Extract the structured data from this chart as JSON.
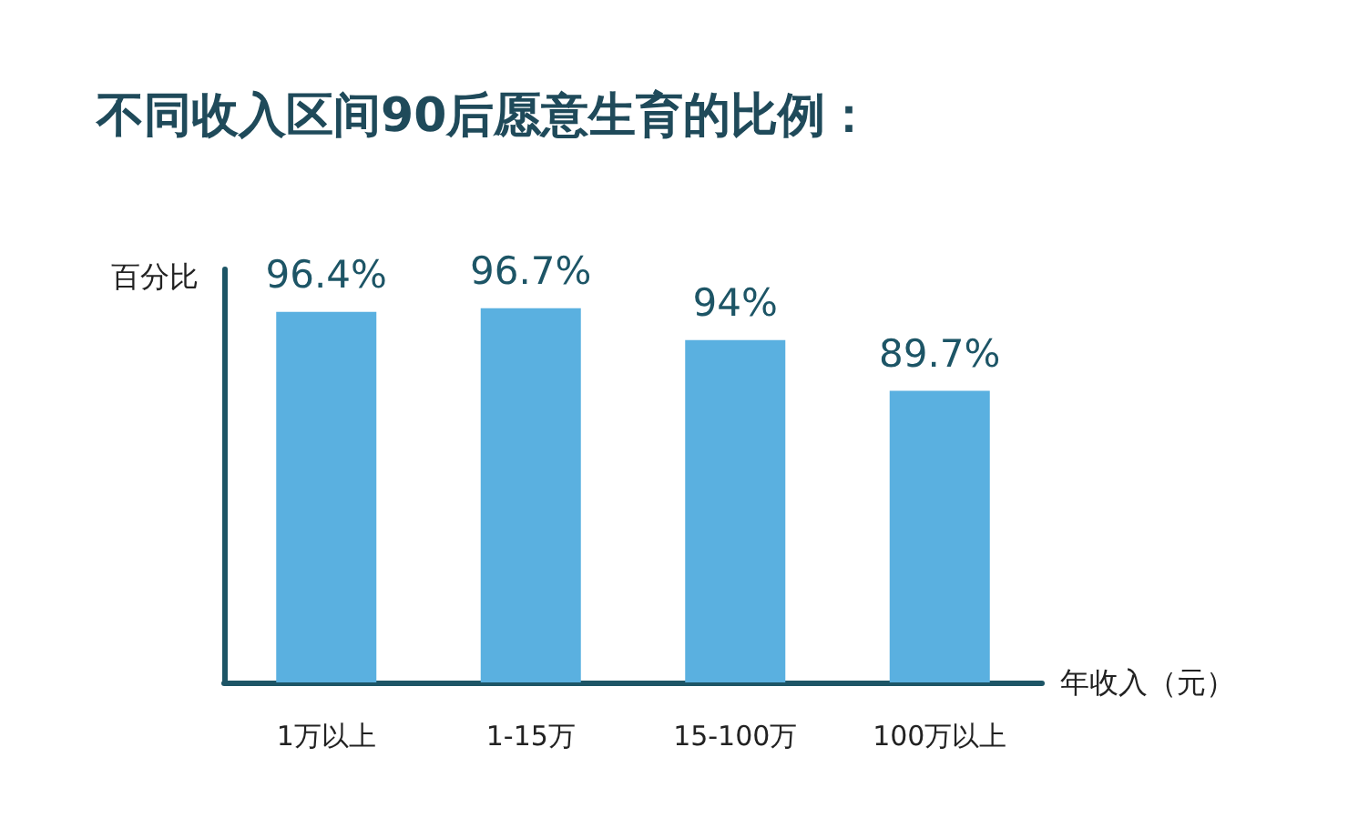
{
  "chart_data": {
    "type": "bar",
    "title": "不同收入区间90后愿意生育的比例：",
    "categories": [
      "1万以上",
      "1-15万",
      "15-100万",
      "100万以上"
    ],
    "values": [
      96.4,
      96.7,
      94,
      89.7
    ],
    "color": "#5ab0e0",
    "value_labels": [
      "96.4%",
      "96.7%",
      "94%",
      "89.7%"
    ],
    "ylim": [
      65,
      100
    ],
    "xlabel": "年收入（元）",
    "ylabel": "百分比",
    "tick_labels": "x"
  }
}
